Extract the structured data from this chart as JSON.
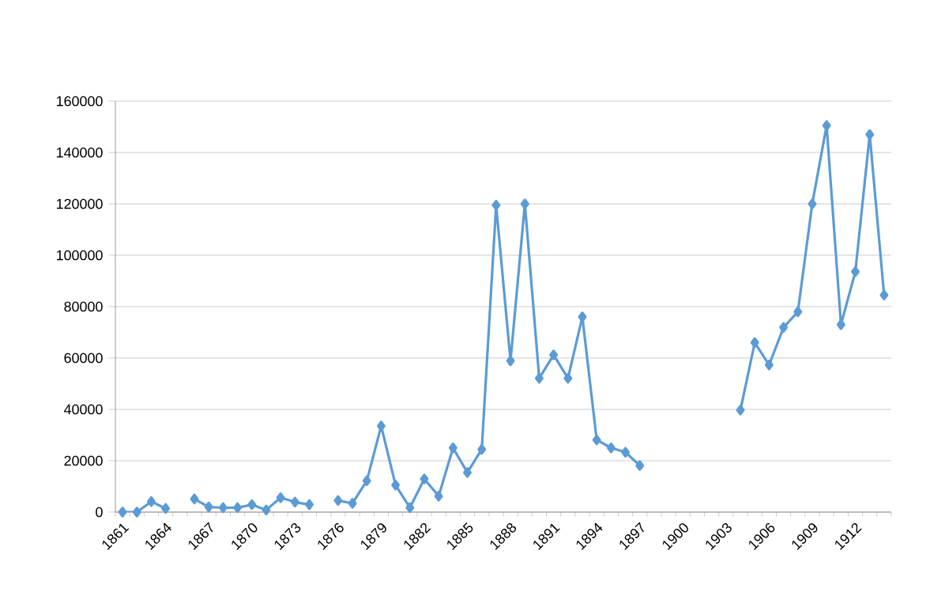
{
  "chart_data": {
    "type": "line",
    "categories": [
      "1861",
      null,
      null,
      "1864",
      null,
      null,
      "1867",
      null,
      null,
      "1870",
      null,
      null,
      "1873",
      null,
      null,
      "1876",
      null,
      null,
      "1879",
      null,
      null,
      "1882",
      null,
      null,
      "1885",
      null,
      null,
      "1888",
      null,
      null,
      "1891",
      null,
      null,
      "1894",
      null,
      null,
      "1897",
      null,
      null,
      "1900",
      null,
      null,
      "1903",
      null,
      null,
      "1906",
      null,
      null,
      "1909",
      null,
      null,
      "1912",
      null,
      null
    ],
    "series": [
      {
        "color": "#5b9bd5",
        "values": [
          0,
          0,
          4100,
          1400,
          null,
          5100,
          2000,
          1700,
          1700,
          2900,
          800,
          5600,
          3900,
          2900,
          null,
          4500,
          3400,
          12200,
          33500,
          10500,
          1700,
          12900,
          6200,
          25000,
          15400,
          24400,
          119500,
          58900,
          120000,
          52100,
          61200,
          52100,
          76000,
          28100,
          25000,
          23300,
          18100,
          null,
          null,
          null,
          null,
          null,
          null,
          39700,
          66000,
          57300,
          71900,
          78000,
          120000,
          150500,
          73000,
          93600,
          147000,
          84500
        ]
      }
    ],
    "ylim": [
      0,
      160000
    ],
    "yticks": [
      0,
      20000,
      40000,
      60000,
      80000,
      100000,
      120000,
      140000,
      160000
    ],
    "grid": "y",
    "marker": "diamond",
    "line_style": "solid"
  }
}
